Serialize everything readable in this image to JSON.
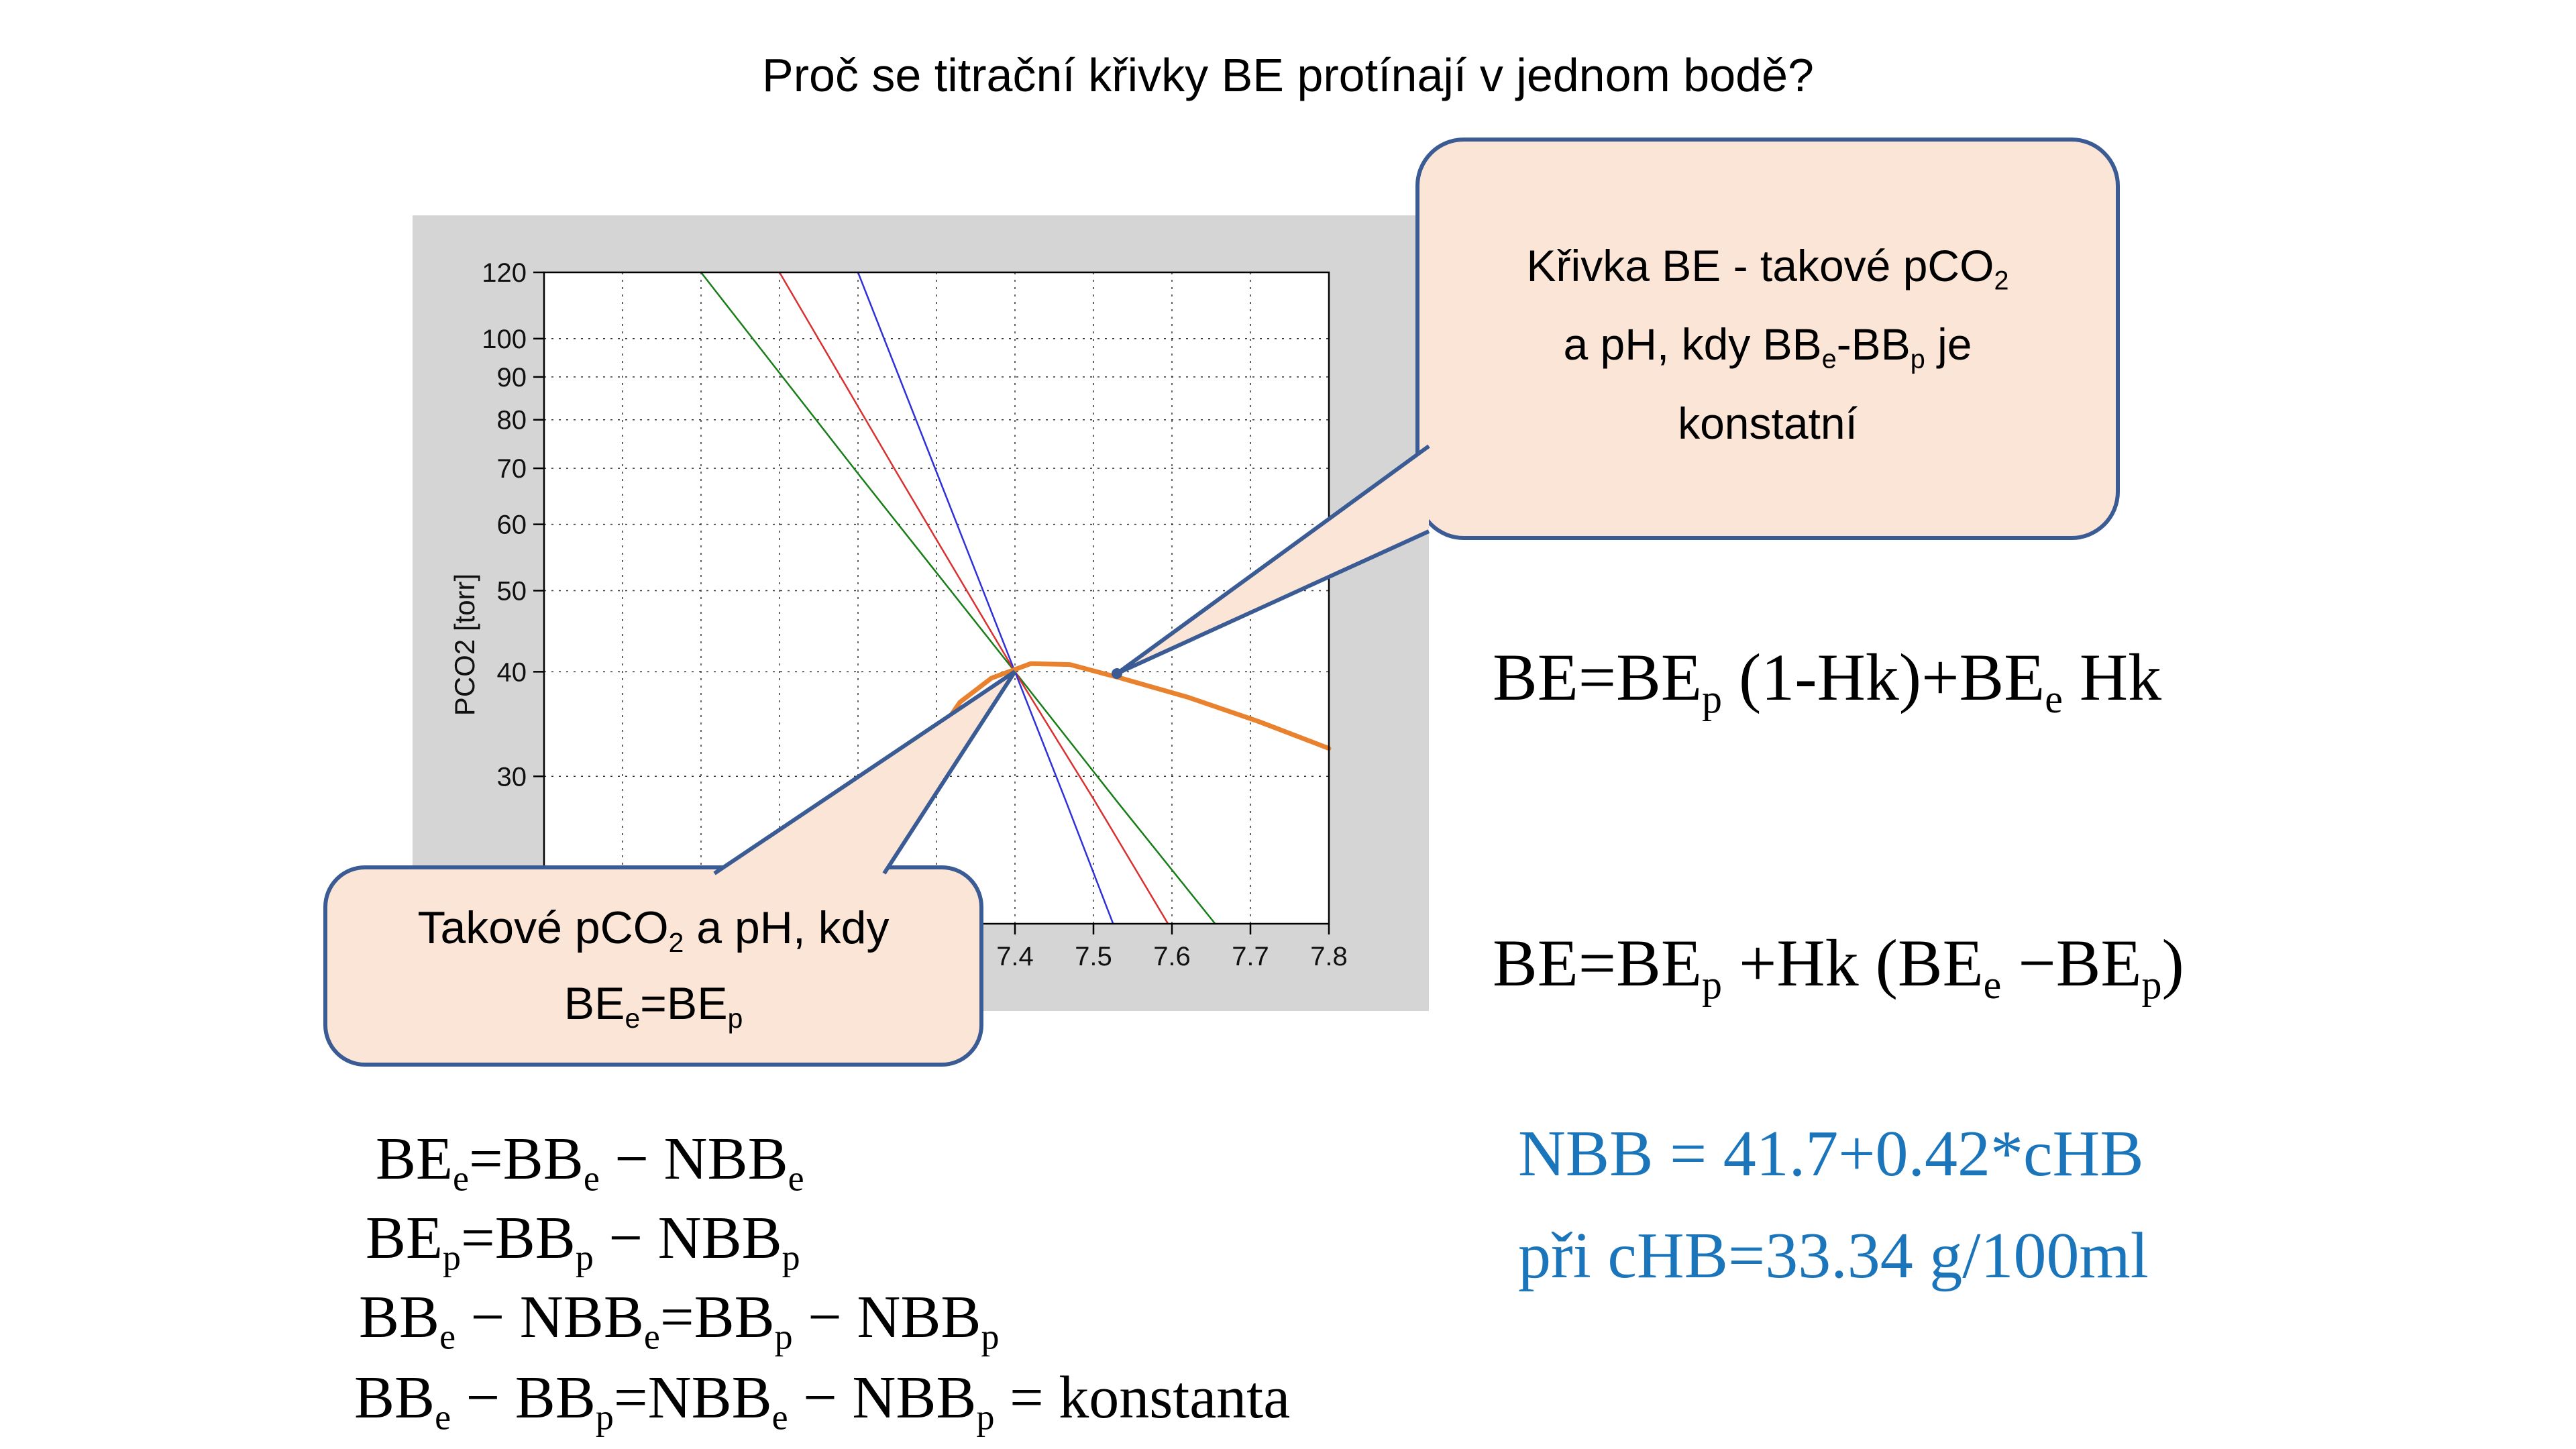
{
  "title": "Proč se titrační křivky BE protínají v jednom bodě?",
  "colors": {
    "slide_background": "#FFFFFF",
    "chart_panel_background": "#D5D5D5",
    "bubble_fill": "#FBE5D6",
    "bubble_border": "#3A5B94",
    "blue_formula_text": "#1B75BB",
    "series_green": "#177D17",
    "series_red": "#D93030",
    "series_blue": "#3030D9",
    "series_orange": "#E8822F",
    "axis_text": "#111111"
  },
  "chart_data": {
    "type": "line",
    "title": "",
    "xlabel": "",
    "ylabel": "PCO2 [torr]",
    "x_scale": "linear",
    "y_scale": "log",
    "xlim": [
      6.8,
      7.8
    ],
    "ylim": [
      20,
      120
    ],
    "grid": true,
    "legend": "none",
    "x_gridlines": [
      6.9,
      7.0,
      7.1,
      7.2,
      7.3,
      7.4,
      7.5,
      7.6,
      7.7
    ],
    "x_tick_labels": [
      {
        "v": 7.4,
        "t": "7.4"
      },
      {
        "v": 7.5,
        "t": "7.5"
      },
      {
        "v": 7.6,
        "t": "7.6"
      },
      {
        "v": 7.7,
        "t": "7.7"
      },
      {
        "v": 7.8,
        "t": "7.8"
      }
    ],
    "y_gridlines": [
      100,
      90,
      80,
      70,
      60,
      50,
      40,
      30
    ],
    "y_tick_labels": [
      {
        "v": 120,
        "t": "120"
      },
      {
        "v": 100,
        "t": "100"
      },
      {
        "v": 90,
        "t": "90"
      },
      {
        "v": 80,
        "t": "80"
      },
      {
        "v": 70,
        "t": "70"
      },
      {
        "v": 60,
        "t": "60"
      },
      {
        "v": 50,
        "t": "50"
      },
      {
        "v": 40,
        "t": "40"
      },
      {
        "v": 30,
        "t": "30"
      }
    ],
    "series": [
      {
        "name": "titration-curve-green",
        "color": "#177D17",
        "width": 2.5,
        "points": [
          [
            7.0,
            120
          ],
          [
            7.2,
            69
          ],
          [
            7.4,
            40
          ],
          [
            7.53,
            28
          ],
          [
            7.655,
            20
          ]
        ]
      },
      {
        "name": "titration-curve-red",
        "color": "#D93030",
        "width": 2.5,
        "points": [
          [
            7.1,
            120
          ],
          [
            7.25,
            69
          ],
          [
            7.4,
            40
          ],
          [
            7.5,
            28.2
          ],
          [
            7.595,
            20
          ]
        ]
      },
      {
        "name": "titration-curve-blue",
        "color": "#3030D9",
        "width": 2.5,
        "points": [
          [
            7.2,
            120
          ],
          [
            7.3,
            69.3
          ],
          [
            7.4,
            40
          ],
          [
            7.465,
            28
          ],
          [
            7.525,
            20
          ]
        ]
      },
      {
        "name": "be-curve-orange",
        "color": "#E8822F",
        "width": 7,
        "points": [
          [
            7.27,
            26
          ],
          [
            7.283,
            29.5
          ],
          [
            7.3,
            33.5
          ],
          [
            7.33,
            36.8
          ],
          [
            7.37,
            39.3
          ],
          [
            7.42,
            40.9
          ],
          [
            7.47,
            40.8
          ],
          [
            7.535,
            39.3
          ],
          [
            7.62,
            37.3
          ],
          [
            7.71,
            34.9
          ],
          [
            7.8,
            32.4
          ]
        ]
      }
    ],
    "intersection_point": {
      "ph": 7.4,
      "pco2": 40
    },
    "pointer_marker_point": {
      "ph": 7.53,
      "pco2": 39.8
    }
  },
  "callouts": [
    {
      "id": "be-curve-definition",
      "lines": [
        [
          {
            "t": "Křivka BE - takové pCO"
          },
          {
            "s": "2"
          }
        ],
        [
          {
            "t": "a pH, kdy BB"
          },
          {
            "s": "e"
          },
          {
            "t": "-BB"
          },
          {
            "s": "p"
          },
          {
            "t": " je"
          }
        ],
        [
          {
            "t": "konstatní"
          }
        ]
      ]
    },
    {
      "id": "intersection-definition",
      "lines": [
        [
          {
            "t": "Takové pCO"
          },
          {
            "s": "2"
          },
          {
            "t": " a pH, kdy"
          }
        ],
        [
          {
            "t": "BE"
          },
          {
            "s": "e"
          },
          {
            "t": "=BE"
          },
          {
            "s": "p"
          }
        ]
      ]
    }
  ],
  "formulas": {
    "right1": [
      {
        "t": "BE=BE"
      },
      {
        "s": "p"
      },
      {
        "t": " (1-Hk)+BE"
      },
      {
        "s": "e"
      },
      {
        "t": " Hk"
      }
    ],
    "right2": [
      {
        "t": "BE=BE"
      },
      {
        "s": "p"
      },
      {
        "t": " +Hk (BE"
      },
      {
        "s": "e"
      },
      {
        "t": " −BE"
      },
      {
        "s": "p"
      },
      {
        "t": ")"
      }
    ],
    "nbb": [
      {
        "t": "NBB = 41.7+0.42*cHB"
      }
    ],
    "chb": [
      {
        "t": "při cHB=33.34 g/100ml"
      }
    ],
    "b1": [
      {
        "t": "BE"
      },
      {
        "s": "e"
      },
      {
        "t": "=BB"
      },
      {
        "s": "e"
      },
      {
        "t": " − NBB"
      },
      {
        "s": "e"
      }
    ],
    "b2": [
      {
        "t": "BE"
      },
      {
        "s": "p"
      },
      {
        "t": "=BB"
      },
      {
        "s": "p"
      },
      {
        "t": " − NBB"
      },
      {
        "s": "p"
      }
    ],
    "b3": [
      {
        "t": "BB"
      },
      {
        "s": "e"
      },
      {
        "t": " − NBB"
      },
      {
        "s": "e"
      },
      {
        "t": "=BB"
      },
      {
        "s": "p"
      },
      {
        "t": " − NBB"
      },
      {
        "s": "p"
      }
    ],
    "b4": [
      {
        "t": "BB"
      },
      {
        "s": "e"
      },
      {
        "t": " − BB"
      },
      {
        "s": "p"
      },
      {
        "t": "=NBB"
      },
      {
        "s": "e"
      },
      {
        "t": " − NBB"
      },
      {
        "s": "p"
      },
      {
        "t": " = konstanta"
      }
    ]
  }
}
